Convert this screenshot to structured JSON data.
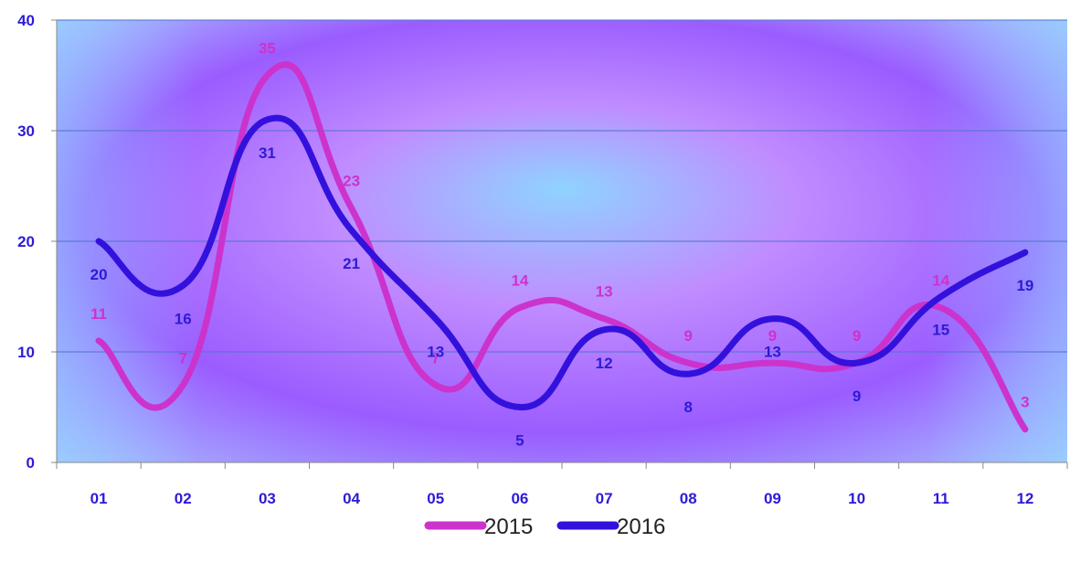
{
  "chart_data": {
    "type": "line",
    "title": "",
    "xlabel": "",
    "ylabel": "",
    "categories": [
      "01",
      "02",
      "03",
      "04",
      "05",
      "06",
      "07",
      "08",
      "09",
      "10",
      "11",
      "12"
    ],
    "ylim": [
      0,
      40
    ],
    "yticks": [
      0,
      10,
      20,
      30,
      40
    ],
    "grid": true,
    "smooth": true,
    "legend_position": "bottom",
    "tick_color": "#2d1bd6",
    "series": [
      {
        "name": "2015",
        "color": "#cc33cc",
        "label_color": "#cc33cc",
        "values": [
          11,
          7,
          35,
          23,
          7,
          14,
          13,
          9,
          9,
          9,
          14,
          3
        ],
        "labels": [
          "11",
          "7",
          "35",
          "23",
          "7",
          "14",
          "13",
          "9",
          "9",
          "9",
          "14",
          "3"
        ]
      },
      {
        "name": "2016",
        "color": "#3311dd",
        "label_color": "#2d1bd6",
        "values": [
          20,
          16,
          31,
          21,
          13,
          5,
          12,
          8,
          13,
          9,
          15,
          19
        ],
        "labels": [
          "20",
          "16",
          "31",
          "21",
          "13",
          "5",
          "12",
          "8",
          "13",
          "9",
          "15",
          "19"
        ]
      }
    ],
    "background_colors": [
      "#8fd3ff",
      "#c08cff",
      "#9b5cff",
      "#a7c8ff"
    ]
  }
}
